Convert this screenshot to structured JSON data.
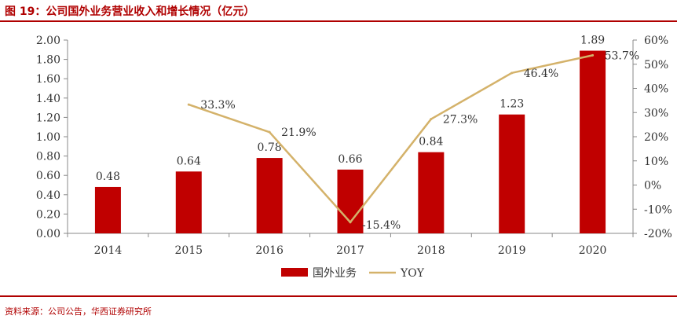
{
  "figure": {
    "title": "图 19：公司国外业务营业收入和增长情况（亿元）",
    "source": "资料来源：公司公告，华西证券研究所"
  },
  "colors": {
    "bar": "#c00000",
    "line": "#d4b26a",
    "accent": "#b00000",
    "axis": "#888888",
    "text": "#333333"
  },
  "chart_data": {
    "type": "bar",
    "categories": [
      "2014",
      "2015",
      "2016",
      "2017",
      "2018",
      "2019",
      "2020"
    ],
    "series": [
      {
        "name": "国外业务",
        "type": "bar",
        "axis": "left",
        "values": [
          0.48,
          0.64,
          0.78,
          0.66,
          0.84,
          1.23,
          1.89
        ],
        "labels": [
          "0.48",
          "0.64",
          "0.78",
          "0.66",
          "0.84",
          "1.23",
          "1.89"
        ]
      },
      {
        "name": "YOY",
        "type": "line",
        "axis": "right",
        "values": [
          null,
          33.3,
          21.9,
          -15.4,
          27.3,
          46.4,
          53.7
        ],
        "labels": [
          "",
          "33.3%",
          "21.9%",
          "-15.4%",
          "27.3%",
          "46.4%",
          "53.7%"
        ]
      }
    ],
    "y_left": {
      "lim": [
        0,
        2.0
      ],
      "ticks": [
        "0.00",
        "0.20",
        "0.40",
        "0.60",
        "0.80",
        "1.00",
        "1.20",
        "1.40",
        "1.60",
        "1.80",
        "2.00"
      ]
    },
    "y_right": {
      "lim": [
        -20,
        60
      ],
      "ticks": [
        "-20%",
        "-10%",
        "0%",
        "10%",
        "20%",
        "30%",
        "40%",
        "50%",
        "60%"
      ]
    },
    "legend": "bottom",
    "grid": false
  }
}
